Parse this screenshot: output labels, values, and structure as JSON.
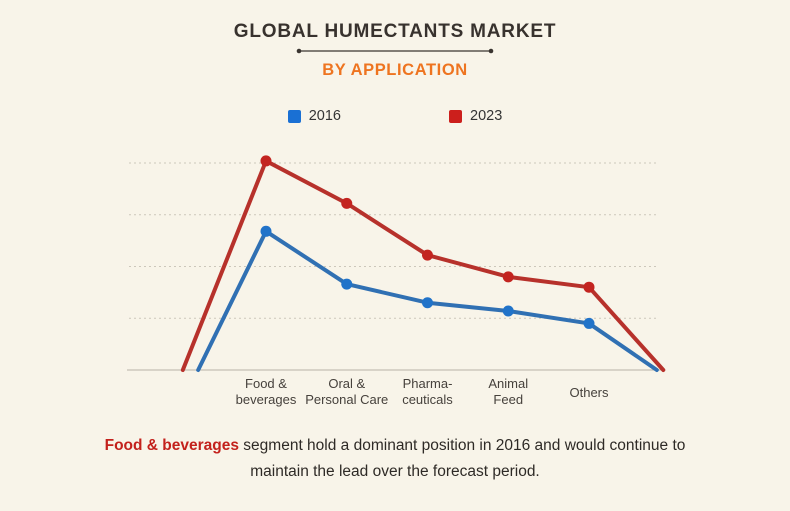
{
  "header": {
    "title": "GLOBAL HUMECTANTS MARKET",
    "subtitle": "BY APPLICATION"
  },
  "chart_data": {
    "type": "line",
    "title": "GLOBAL HUMECTANTS MARKET",
    "subtitle": "BY APPLICATION",
    "categories": [
      "Food &\nbeverages",
      "Oral &\nPersonal Care",
      "Pharma-\nceuticals",
      "Animal\nFeed",
      "Others"
    ],
    "series": [
      {
        "name": "2016",
        "color": "#3070b3",
        "marker_color": "#2173c9",
        "swatch_color": "#1a70d4",
        "values": [
          67,
          41.5,
          32.5,
          28.5,
          22.5
        ],
        "zero_start": -0.84,
        "zero_end": 4.84
      },
      {
        "name": "2023",
        "color": "#b7312b",
        "marker_color": "#c32420",
        "swatch_color": "#cc1f1c",
        "values": [
          101,
          80.5,
          55.5,
          45,
          40
        ],
        "zero_start": -1.03,
        "zero_end": 4.92
      }
    ],
    "ylim": [
      0,
      111
    ],
    "gridlines": [
      25,
      50,
      75,
      100
    ],
    "y_tick_labels": [],
    "grid_style": "dotted",
    "legend_position": "top"
  },
  "caption": {
    "highlight": "Food & beverages",
    "text": " segment hold a dominant position in 2016 and would continue to maintain the lead over the forecast period."
  },
  "colors": {
    "background": "#f8f4e9",
    "title": "#38322e",
    "subtitle_accent": "#ee7420",
    "axis": "#b7b2a7",
    "gridline": "#ccc7bb",
    "caption_highlight": "#c3211c"
  }
}
